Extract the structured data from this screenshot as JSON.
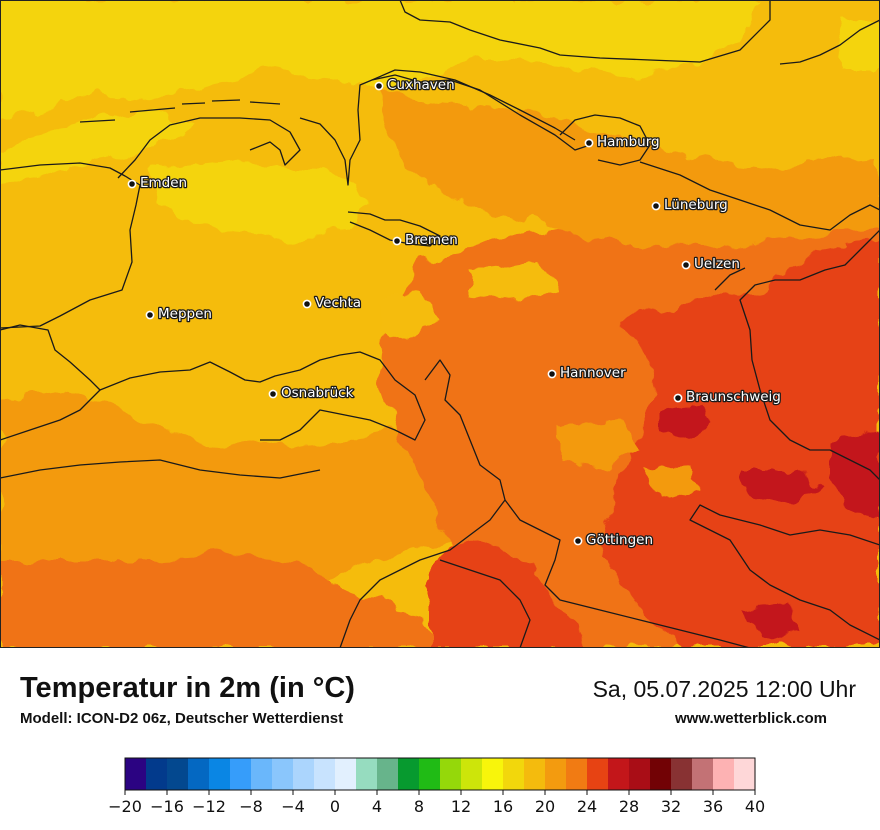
{
  "map": {
    "cities": [
      {
        "name": "Cuxhaven"
      },
      {
        "name": "Hamburg"
      },
      {
        "name": "Emden"
      },
      {
        "name": "Lüneburg"
      },
      {
        "name": "Bremen"
      },
      {
        "name": "Uelzen"
      },
      {
        "name": "Vechta"
      },
      {
        "name": "Meppen"
      },
      {
        "name": "Hannover"
      },
      {
        "name": "Osnabrück"
      },
      {
        "name": "Braunschweig"
      },
      {
        "name": "Göttingen"
      }
    ],
    "colors": {
      "t16": "#f4d40c",
      "t18": "#f5bc0c",
      "t20": "#f39a10",
      "t22": "#f07314",
      "t24": "#e64313",
      "t26": "#c3161a",
      "border": "#1a1a1a"
    }
  },
  "footer": {
    "title": "Temperatur in 2m (in °C)",
    "subtitle": "Modell: ICON-D2 06z, Deutscher Wetterdienst",
    "datetime": "Sa, 05.07.2025 12:00 Uhr",
    "website": "www.wetterblick.com"
  },
  "colorbar": {
    "min": -20,
    "max": 40,
    "step": 2,
    "colors": [
      "#2b0382",
      "#023a8c",
      "#03488f",
      "#0468c2",
      "#0a86e4",
      "#369dfa",
      "#6ab7fb",
      "#8ac6fc",
      "#abd5fd",
      "#c8e3fe",
      "#e2f0fe",
      "#96dcbf",
      "#67b48b",
      "#079a2f",
      "#20bb15",
      "#95d80a",
      "#cde50a",
      "#f8f50b",
      "#f2d70c",
      "#f4bb0d",
      "#f39b0f",
      "#f17b13",
      "#e74313",
      "#c3161a",
      "#a90d16",
      "#720205",
      "#883233",
      "#c37275",
      "#fdb2b3",
      "#fed7d8"
    ],
    "ticks": [
      "−20",
      "−16",
      "−12",
      "−8",
      "−4",
      "0",
      "4",
      "8",
      "12",
      "16",
      "20",
      "24",
      "28",
      "32",
      "36",
      "40"
    ]
  }
}
